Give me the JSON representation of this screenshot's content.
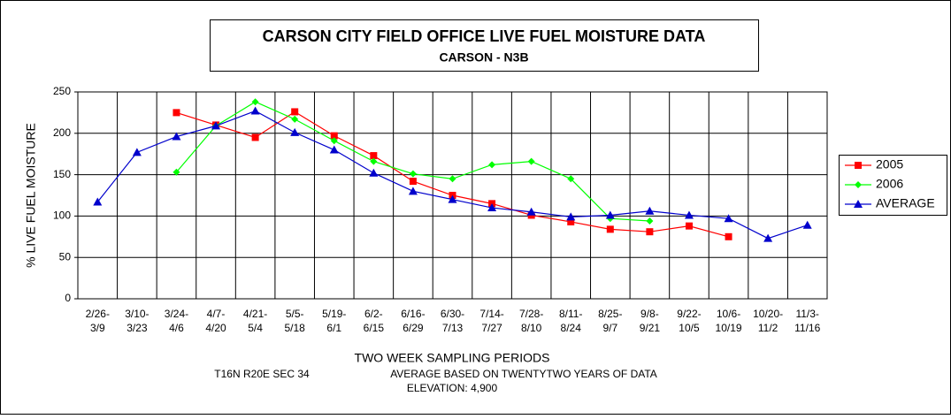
{
  "chart_data": {
    "type": "line",
    "title": "CARSON CITY FIELD OFFICE  LIVE FUEL MOISTURE DATA",
    "subtitle": "CARSON - N3B",
    "y_label": "% LIVE FUEL MOISTURE",
    "x_label": "TWO WEEK SAMPLING PERIODS",
    "notes": [
      "T16N R20E SEC 34",
      "AVERAGE BASED ON TWENTYTWO YEARS OF DATA",
      "ELEVATION: 4,900"
    ],
    "categories": [
      [
        "2/26-",
        "3/9"
      ],
      [
        "3/10-",
        "3/23"
      ],
      [
        "3/24-",
        "4/6"
      ],
      [
        "4/7-",
        "4/20"
      ],
      [
        "4/21-",
        "5/4"
      ],
      [
        "5/5-",
        "5/18"
      ],
      [
        "5/19-",
        "6/1"
      ],
      [
        "6/2-",
        "6/15"
      ],
      [
        "6/16-",
        "6/29"
      ],
      [
        "6/30-",
        "7/13"
      ],
      [
        "7/14-",
        "7/27"
      ],
      [
        "7/28-",
        "8/10"
      ],
      [
        "8/11-",
        "8/24"
      ],
      [
        "8/25-",
        "9/7"
      ],
      [
        "9/8-",
        "9/21"
      ],
      [
        "9/22-",
        "10/5"
      ],
      [
        "10/6-",
        "10/19"
      ],
      [
        "10/20-",
        "11/2"
      ],
      [
        "11/3-",
        "11/16"
      ]
    ],
    "series": [
      {
        "name": "2005",
        "color": "#ff0000",
        "marker": "square",
        "values": [
          null,
          null,
          225,
          210,
          195,
          226,
          197,
          173,
          142,
          125,
          115,
          101,
          93,
          84,
          81,
          88,
          75,
          null,
          null
        ]
      },
      {
        "name": "2006",
        "color": "#00ff00",
        "marker": "diamond",
        "values": [
          null,
          null,
          153,
          209,
          238,
          217,
          191,
          166,
          151,
          145,
          162,
          166,
          145,
          97,
          94,
          null,
          null,
          null,
          null
        ]
      },
      {
        "name": "AVERAGE",
        "color": "#0000cc",
        "marker": "triangle",
        "values": [
          117,
          177,
          196,
          209,
          227,
          201,
          180,
          152,
          130,
          120,
          110,
          105,
          99,
          101,
          106,
          101,
          97,
          73,
          89
        ]
      }
    ],
    "ylim": [
      0,
      250
    ],
    "yticks": [
      0,
      50,
      100,
      150,
      200,
      250
    ],
    "grid": true,
    "legend": "right"
  }
}
